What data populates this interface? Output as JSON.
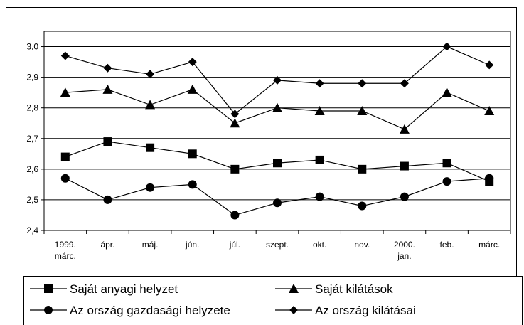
{
  "chart_data": {
    "type": "line",
    "categories": [
      "1999. márc.",
      "ápr.",
      "máj.",
      "jún.",
      "júl.",
      "szept.",
      "okt.",
      "nov.",
      "2000. jan.",
      "feb.",
      "márc."
    ],
    "series": [
      {
        "name": "Saját anyagi helyzet",
        "color": "#000000",
        "marker": "square",
        "values": [
          2.64,
          2.69,
          2.67,
          2.65,
          2.6,
          2.62,
          2.63,
          2.6,
          2.61,
          2.62,
          2.56
        ]
      },
      {
        "name": "Saját kilátások",
        "color": "#000000",
        "marker": "triangle",
        "values": [
          2.85,
          2.86,
          2.81,
          2.86,
          2.75,
          2.8,
          2.79,
          2.79,
          2.73,
          2.85,
          2.79
        ]
      },
      {
        "name": "Az ország gazdasági helyzete",
        "color": "#000000",
        "marker": "circle",
        "values": [
          2.57,
          2.5,
          2.54,
          2.55,
          2.45,
          2.49,
          2.51,
          2.48,
          2.51,
          2.56,
          2.57
        ]
      },
      {
        "name": "Az ország kilátásai",
        "color": "#000000",
        "marker": "diamond",
        "values": [
          2.97,
          2.93,
          2.91,
          2.95,
          2.78,
          2.89,
          2.88,
          2.88,
          2.88,
          3.0,
          2.94
        ]
      }
    ],
    "ylim": [
      2.4,
      3.05
    ],
    "yticks": [
      {
        "value": 2.4,
        "label": "2,4"
      },
      {
        "value": 2.5,
        "label": "2,5"
      },
      {
        "value": 2.6,
        "label": "2,6"
      },
      {
        "value": 2.7,
        "label": "2,7"
      },
      {
        "value": 2.8,
        "label": "2,8"
      },
      {
        "value": 2.9,
        "label": "2,9"
      },
      {
        "value": 3.0,
        "label": "3,0"
      }
    ],
    "grid": true,
    "legend": "bottom"
  }
}
